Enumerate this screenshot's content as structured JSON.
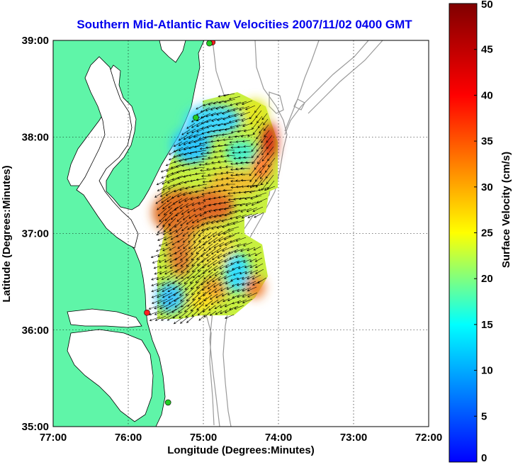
{
  "title": "Southern Mid-Atlantic Raw Velocities 2007/11/02 0400 GMT",
  "map": {
    "xlabel": "Longitude (Degrees:Minutes)",
    "ylabel": "Latitude (Degrees:Minutes)",
    "x_ticks": [
      "77:00",
      "76:00",
      "75:00",
      "74:00",
      "73:00",
      "72:00"
    ],
    "y_ticks": [
      "39:00",
      "38:00",
      "37:00",
      "36:00",
      "35:00"
    ],
    "lon_range": [
      -77,
      -72
    ],
    "lat_range": [
      35,
      39
    ],
    "land_color": "#5ff5a8",
    "water_color": "#ffffff",
    "bathymetry_color": "#9a9a9a",
    "grid": "dotted",
    "station_markers": [
      {
        "lon": -74.88,
        "lat": 38.98,
        "color": "#ff2020"
      },
      {
        "lon": -74.92,
        "lat": 38.97,
        "color": "#22cc22"
      },
      {
        "lon": -75.1,
        "lat": 38.2,
        "color": "#22cc22"
      },
      {
        "lon": -75.75,
        "lat": 36.18,
        "color": "#ff2020"
      },
      {
        "lon": -75.47,
        "lat": 35.25,
        "color": "#22cc22"
      }
    ]
  },
  "colorbar": {
    "label": "Surface Velocity (cm/s)",
    "min": 0,
    "max": 50,
    "ticks": [
      "0",
      "5",
      "10",
      "15",
      "20",
      "25",
      "30",
      "35",
      "40",
      "45",
      "50"
    ],
    "colormap": [
      "#0000ff",
      "#00ffff",
      "#ffff00",
      "#ff0000",
      "#800000"
    ]
  }
}
